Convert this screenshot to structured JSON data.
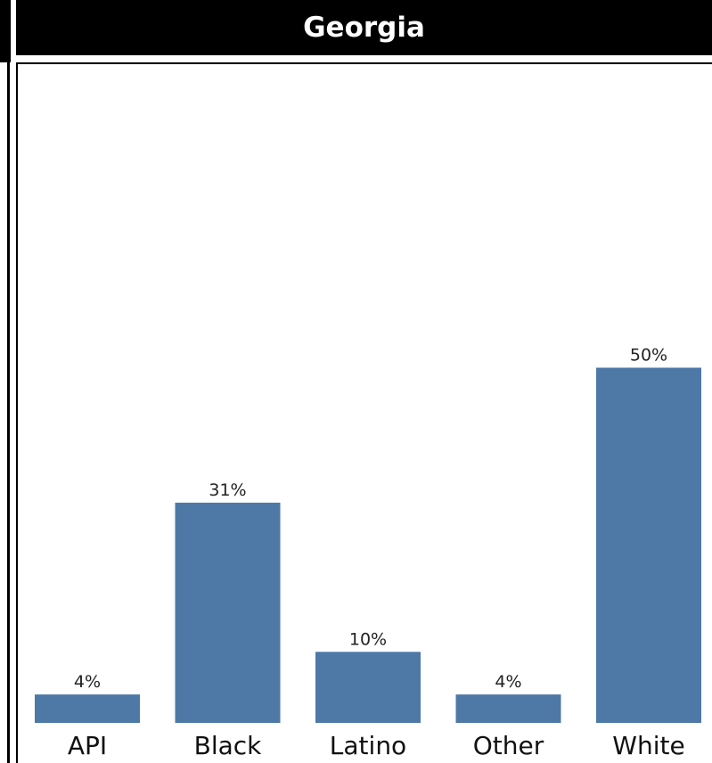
{
  "header": {
    "title": "Georgia"
  },
  "chart_data": {
    "type": "bar",
    "title": "Georgia",
    "categories": [
      "API",
      "Black",
      "Latino",
      "Other",
      "White"
    ],
    "values": [
      4,
      31,
      10,
      4,
      50
    ],
    "value_labels": [
      "4%",
      "31%",
      "10%",
      "4%",
      "50%"
    ],
    "ylim": [
      0,
      100
    ],
    "grid": false,
    "colors": {
      "bar": "#4e79a7",
      "header_bg": "#000000",
      "header_text": "#ffffff"
    }
  }
}
